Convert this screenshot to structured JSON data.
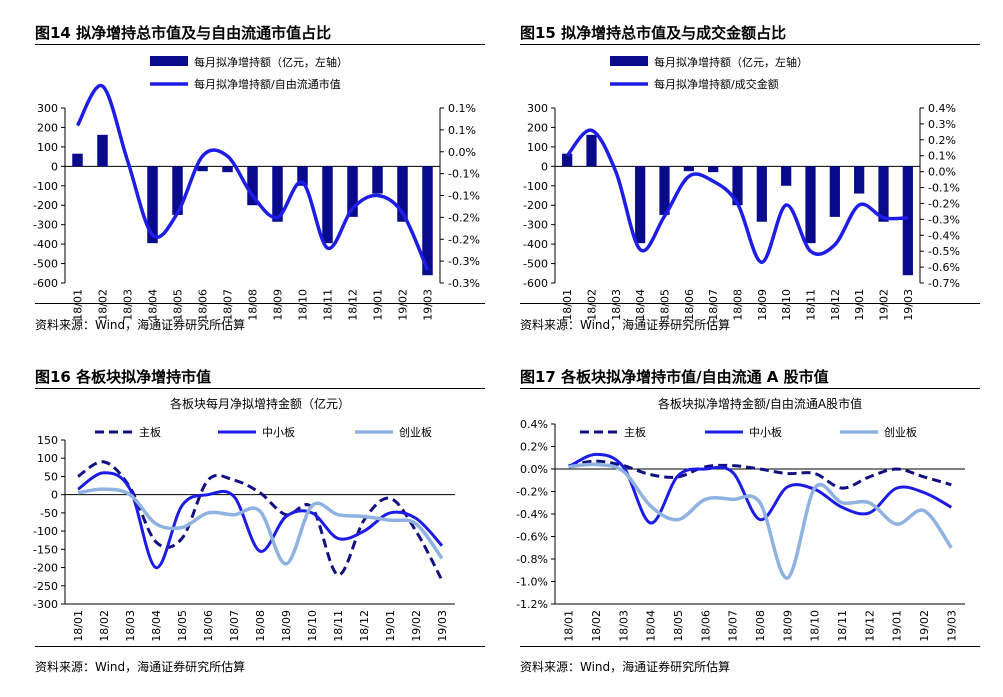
{
  "source_note": "资料来源：Wind，海通证券研究所估算",
  "colors": {
    "bar": "#0a0a8c",
    "line": "#1d1de6",
    "main": "#101080",
    "sme": "#1c1ce6",
    "gem": "#8fb2e0"
  },
  "months": [
    "18/01",
    "18/02",
    "18/03",
    "18/04",
    "18/05",
    "18/06",
    "18/07",
    "18/08",
    "18/09",
    "18/10",
    "18/11",
    "18/12",
    "19/01",
    "19/02",
    "19/03"
  ],
  "figures": [
    {
      "id": "fig14",
      "title": "图14 拟净增持总市值及与自由流通市值占比",
      "legend_bar": "每月拟净增持额（亿元，左轴）",
      "legend_line": "每月拟净增持额/自由流通市值"
    },
    {
      "id": "fig15",
      "title": "图15 拟净增持总市值及与成交金额占比",
      "legend_bar": "每月拟净增持额（亿元，左轴）",
      "legend_line": "每月拟净增持额/成交金额"
    },
    {
      "id": "fig16",
      "title": "图16 各板块拟净增持市值",
      "chart_title": "各板块每月净拟增持金额（亿元）",
      "legend": [
        "主板",
        "中小板",
        "创业板"
      ]
    },
    {
      "id": "fig17",
      "title": "图17 各板块拟净增持市值/自由流通 A 股市值",
      "chart_title": "各板块拟净增持金额/自由流通A股市值",
      "legend": [
        "主板",
        "中小板",
        "创业板"
      ]
    }
  ],
  "chart_data": [
    {
      "type": "bar+line",
      "categories": [
        "18/01",
        "18/02",
        "18/03",
        "18/04",
        "18/05",
        "18/06",
        "18/07",
        "18/08",
        "18/09",
        "18/10",
        "18/11",
        "18/12",
        "19/01",
        "19/02",
        "19/03"
      ],
      "left_axis": {
        "ylim": [
          -600,
          300
        ],
        "ticks": [
          "300",
          "200",
          "100",
          "0",
          "-100",
          "-200",
          "-300",
          "-400",
          "-500",
          "-600"
        ]
      },
      "right_axis": {
        "ylim": [
          -0.3,
          0.1
        ],
        "ticks": [
          "0.1%",
          "0.1%",
          "0.0%",
          "-0.1%",
          "-0.1%",
          "-0.2%",
          "-0.2%",
          "-0.3%",
          "-0.3%"
        ]
      },
      "series": [
        {
          "name": "每月拟净增持额（亿元，左轴）",
          "type": "bar",
          "values": [
            65,
            162,
            0,
            -395,
            -250,
            -25,
            -30,
            -200,
            -285,
            -100,
            -395,
            -260,
            -140,
            -285,
            -560
          ]
        },
        {
          "name": "每月拟净增持额/自由流通市值",
          "type": "line",
          "values": [
            0.06,
            0.15,
            -0.02,
            -0.19,
            -0.14,
            -0.01,
            -0.01,
            -0.1,
            -0.15,
            -0.07,
            -0.22,
            -0.13,
            -0.1,
            -0.14,
            -0.27
          ]
        }
      ]
    },
    {
      "type": "bar+line",
      "categories": [
        "18/01",
        "18/02",
        "18/03",
        "18/04",
        "18/05",
        "18/06",
        "18/07",
        "18/08",
        "18/09",
        "18/10",
        "18/11",
        "18/12",
        "19/01",
        "19/02",
        "19/03"
      ],
      "left_axis": {
        "ylim": [
          -600,
          300
        ],
        "ticks": [
          "300",
          "200",
          "100",
          "0",
          "-100",
          "-200",
          "-300",
          "-400",
          "-500",
          "-600"
        ]
      },
      "right_axis": {
        "ylim": [
          -0.7,
          0.4
        ],
        "ticks": [
          "0.4%",
          "0.3%",
          "0.2%",
          "0.1%",
          "0.0%",
          "-0.1%",
          "-0.2%",
          "-0.3%",
          "-0.4%",
          "-0.5%",
          "-0.6%",
          "-0.7%"
        ]
      },
      "series": [
        {
          "name": "每月拟净增持额（亿元，左轴）",
          "type": "bar",
          "values": [
            65,
            162,
            0,
            -395,
            -250,
            -25,
            -30,
            -200,
            -285,
            -100,
            -395,
            -260,
            -140,
            -285,
            -560
          ]
        },
        {
          "name": "每月拟净增持额/成交金额",
          "type": "line",
          "values": [
            0.1,
            0.26,
            0.0,
            -0.49,
            -0.28,
            -0.03,
            -0.06,
            -0.2,
            -0.57,
            -0.21,
            -0.5,
            -0.46,
            -0.21,
            -0.29,
            -0.29
          ]
        }
      ]
    },
    {
      "type": "line",
      "categories": [
        "18/01",
        "18/02",
        "18/03",
        "18/04",
        "18/05",
        "18/06",
        "18/07",
        "18/08",
        "18/09",
        "18/10",
        "18/11",
        "18/12",
        "19/01",
        "19/02",
        "19/03"
      ],
      "ylim": [
        -300,
        150
      ],
      "ticks": [
        "150",
        "100",
        "50",
        "0",
        "-50",
        "-100",
        "-150",
        "-200",
        "-250",
        "-300"
      ],
      "series": [
        {
          "name": "主板",
          "values": [
            50,
            90,
            20,
            -130,
            -120,
            40,
            40,
            5,
            -55,
            -35,
            -220,
            -70,
            -10,
            -100,
            -235
          ]
        },
        {
          "name": "中小板",
          "values": [
            15,
            60,
            15,
            -200,
            -30,
            0,
            -5,
            -155,
            -60,
            -50,
            -120,
            -100,
            -50,
            -65,
            -140
          ]
        },
        {
          "name": "创业板",
          "values": [
            5,
            15,
            0,
            -80,
            -90,
            -50,
            -55,
            -45,
            -190,
            -30,
            -55,
            -60,
            -70,
            -80,
            -175
          ]
        }
      ]
    },
    {
      "type": "line",
      "categories": [
        "18/01",
        "18/02",
        "18/03",
        "18/04",
        "18/05",
        "18/06",
        "18/07",
        "18/08",
        "18/09",
        "18/10",
        "18/11",
        "18/12",
        "19/01",
        "19/02",
        "19/03"
      ],
      "ylim": [
        -1.2,
        0.4
      ],
      "ticks": [
        "0.4%",
        "0.2%",
        "0.0%",
        "-0.2%",
        "-0.4%",
        "-0.6%",
        "-0.8%",
        "-1.0%",
        "-1.2%"
      ],
      "series": [
        {
          "name": "主板",
          "values": [
            0.03,
            0.07,
            0.03,
            -0.05,
            -0.07,
            0.02,
            0.03,
            0.0,
            -0.04,
            -0.04,
            -0.17,
            -0.07,
            0.0,
            -0.07,
            -0.14
          ]
        },
        {
          "name": "中小板",
          "values": [
            0.02,
            0.13,
            0.02,
            -0.48,
            -0.06,
            0.0,
            -0.03,
            -0.45,
            -0.16,
            -0.18,
            -0.34,
            -0.39,
            -0.17,
            -0.21,
            -0.34
          ]
        },
        {
          "name": "创业板",
          "values": [
            0.02,
            0.04,
            -0.02,
            -0.33,
            -0.45,
            -0.27,
            -0.27,
            -0.3,
            -0.97,
            -0.17,
            -0.3,
            -0.3,
            -0.49,
            -0.37,
            -0.7
          ]
        }
      ]
    }
  ]
}
